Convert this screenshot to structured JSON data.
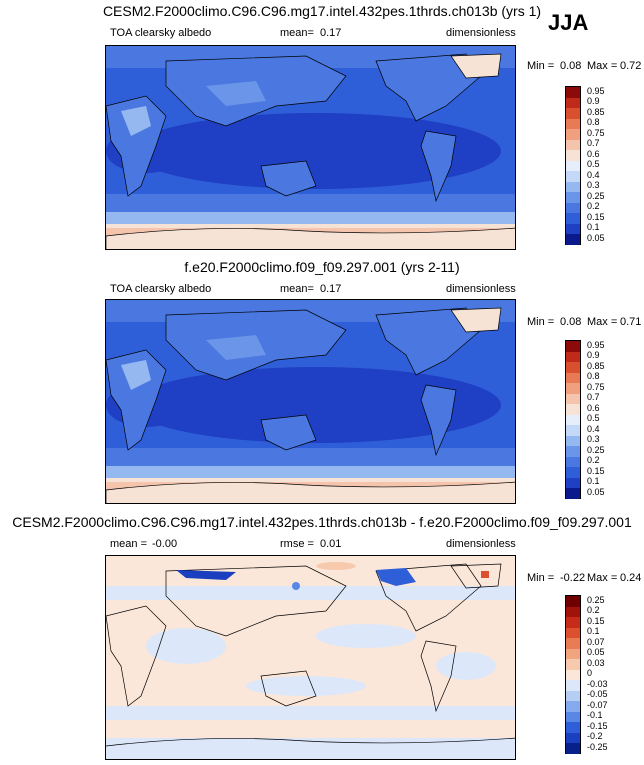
{
  "season": "JJA",
  "panels": [
    {
      "title": "CESM2.F2000climo.C96.C96.mg17.intel.432pes.1thrds.ch013b (yrs 1)",
      "left_label": "TOA clearsky albedo",
      "mean_label": "mean=",
      "mean_value": "0.17",
      "units": "dimensionless",
      "min_label": "Min =",
      "min_value": "0.08",
      "max_label": "Max =",
      "max_value": "0.72",
      "ticks": [
        "0.95",
        "0.9",
        "0.85",
        "0.8",
        "0.75",
        "0.7",
        "0.6",
        "0.5",
        "0.4",
        "0.3",
        "0.25",
        "0.2",
        "0.15",
        "0.1",
        "0.05"
      ]
    },
    {
      "title": "f.e20.F2000climo.f09_f09.297.001 (yrs 2-11)",
      "left_label": "TOA clearsky albedo",
      "mean_label": "mean=",
      "mean_value": "0.17",
      "units": "dimensionless",
      "min_label": "Min =",
      "min_value": "0.08",
      "max_label": "Max =",
      "max_value": "0.71",
      "ticks": [
        "0.95",
        "0.9",
        "0.85",
        "0.8",
        "0.75",
        "0.7",
        "0.6",
        "0.5",
        "0.4",
        "0.3",
        "0.25",
        "0.2",
        "0.15",
        "0.1",
        "0.05"
      ]
    },
    {
      "title": "CESM2.F2000climo.C96.C96.mg17.intel.432pes.1thrds.ch013b - f.e20.F2000climo.f09_f09.297.001",
      "mean_label": "mean =",
      "mean_value": "-0.00",
      "rmse_label": "rmse =",
      "rmse_value": "0.01",
      "units": "dimensionless",
      "min_label": "Min =",
      "min_value": "-0.22",
      "max_label": "Max =",
      "max_value": "0.24",
      "ticks": [
        "0.25",
        "0.2",
        "0.15",
        "0.1",
        "0.07",
        "0.05",
        "0.03",
        "0",
        "-0.03",
        "-0.05",
        "-0.07",
        "-0.1",
        "-0.15",
        "-0.2",
        "-0.25"
      ]
    }
  ],
  "colors": {
    "seq": [
      "#0a1a8c",
      "#1f3fc4",
      "#2f5fd8",
      "#4a78e0",
      "#6a95e8",
      "#95b8f0",
      "#c4d8f7",
      "#e6eefb",
      "#f6e3d6",
      "#f5c4ad",
      "#f0a07e",
      "#e87a55",
      "#d9502f",
      "#bf2a1a",
      "#8c0a0a"
    ],
    "diff": [
      "#08208a",
      "#1a3fbf",
      "#2f5fd8",
      "#5a86e6",
      "#86aaee",
      "#b6cdf4",
      "#dce8fa",
      "#fbe7da",
      "#f7caae",
      "#f2a47e",
      "#ea7c55",
      "#dc5030",
      "#c62a18",
      "#a0120a",
      "#700000"
    ]
  }
}
